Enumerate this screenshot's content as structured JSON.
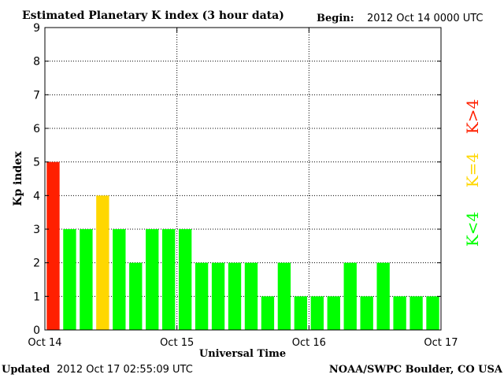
{
  "header": {
    "title": "Estimated Planetary K index (3 hour data)",
    "begin_label": "Begin:",
    "begin_value": "2012 Oct 14 0000 UTC"
  },
  "footer": {
    "updated_label": "Updated",
    "updated_value": "2012 Oct 17 02:55:09 UTC",
    "credit": "NOAA/SWPC Boulder, CO USA"
  },
  "legend": {
    "high": {
      "label": "K>4",
      "color": "#ff2000"
    },
    "equal": {
      "label": "K=4",
      "color": "#ffd700"
    },
    "low": {
      "label": "K<4",
      "color": "#00ff00"
    }
  },
  "chart_data": {
    "type": "bar",
    "title": "Estimated Planetary K index (3 hour data)",
    "xlabel": "Universal Time",
    "ylabel": "Kp index",
    "ylim": [
      0,
      9
    ],
    "yticks": [
      "0",
      "1",
      "2",
      "3",
      "4",
      "5",
      "6",
      "7",
      "8",
      "9"
    ],
    "xticks": [
      "Oct 14",
      "Oct 15",
      "Oct 16",
      "Oct 17"
    ],
    "grid": true,
    "values": [
      5,
      3,
      3,
      4,
      3,
      2,
      3,
      3,
      3,
      2,
      2,
      2,
      2,
      1,
      2,
      1,
      1,
      1,
      2,
      1,
      2,
      1,
      1,
      1
    ]
  }
}
